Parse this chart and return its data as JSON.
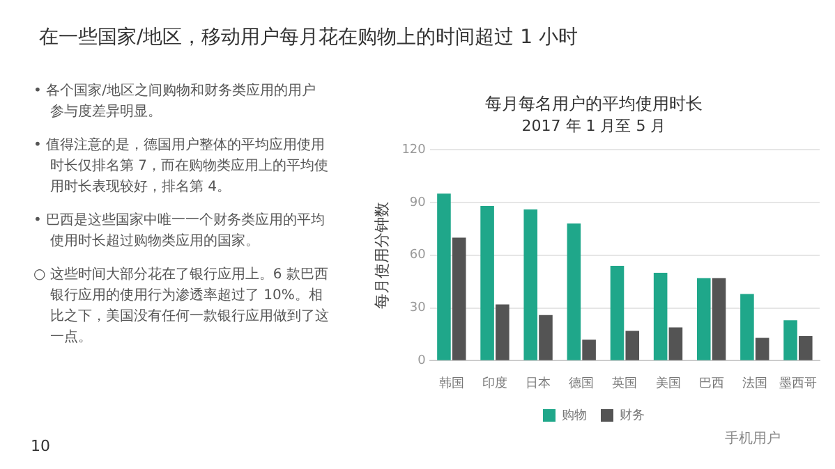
{
  "chart_data": {
    "type": "bar",
    "title": "每月每名用户的平均使用时长",
    "subtitle": "2017 年 1 月至 5 月",
    "ylabel": "每月使用分钟数",
    "categories": [
      "韩国",
      "印度",
      "日本",
      "德国",
      "英国",
      "美国",
      "巴西",
      "法国",
      "墨西哥"
    ],
    "series": [
      {
        "name": "购物",
        "color": "#1fa78a",
        "values": [
          95,
          88,
          86,
          78,
          54,
          50,
          47,
          38,
          23
        ]
      },
      {
        "name": "财务",
        "color": "#545454",
        "values": [
          70,
          32,
          26,
          12,
          17,
          19,
          47,
          13,
          14
        ]
      }
    ],
    "ylim": [
      0,
      120
    ],
    "yticks": [
      0,
      30,
      60,
      90,
      120
    ],
    "grid": "y",
    "legend": "bottom",
    "annotations": [
      "在一些国家/地区，移动用户每月花在购物上的时间超过 1 小时",
      "• 各个国家/地区之间购物和财务类应用的用户参与度差异明显。",
      "• 值得注意的是，德国用户整体的平均应用使用时长仅排名第 7，而在购物类应用上的平均使用时长表现较好，排名第 4。",
      "• 巴西是这些国家中唯一一个财务类应用的平均使用时长超过购物类应用的国家。",
      "○ 这些时间大部分花在了银行应用上。6 款巴西银行应用的使用行为渗透率超过了 10%。相比之下，美国没有任何一款银行应用做到了这一点。",
      "手机用户",
      "10"
    ]
  }
}
